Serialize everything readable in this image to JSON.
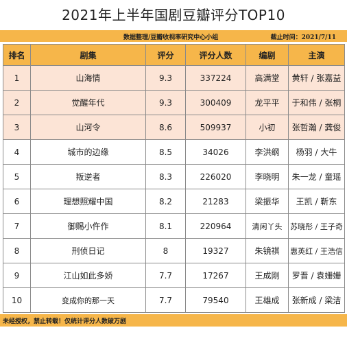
{
  "title": "2021年上半年国剧豆瓣评分TOP10",
  "source": "数据整理/豆瓣收视率研究中心小组",
  "cutoff": "截止时间：2021/7/11",
  "headers": {
    "rank": "排名",
    "drama": "剧集",
    "score": "评分",
    "raters": "评分人数",
    "writer": "编剧",
    "cast": "主演"
  },
  "rows": [
    {
      "rank": "1",
      "drama": "山海情",
      "score": "9.3",
      "raters": "337224",
      "writer": "高满堂",
      "cast": "黄轩 / 张嘉益"
    },
    {
      "rank": "2",
      "drama": "觉醒年代",
      "score": "9.3",
      "raters": "300409",
      "writer": "龙平平",
      "cast": "于和伟 / 张桐"
    },
    {
      "rank": "3",
      "drama": "山河令",
      "score": "8.6",
      "raters": "509937",
      "writer": "小初",
      "cast": "张哲瀚 / 龚俊"
    },
    {
      "rank": "4",
      "drama": "城市的边缘",
      "score": "8.5",
      "raters": "34026",
      "writer": "李洪纲",
      "cast": "杨羽 / 大牛"
    },
    {
      "rank": "5",
      "drama": "叛逆者",
      "score": "8.3",
      "raters": "226020",
      "writer": "李晓明",
      "cast": "朱一龙 / 童瑶"
    },
    {
      "rank": "6",
      "drama": "理想照耀中国",
      "score": "8.2",
      "raters": "21283",
      "writer": "梁振华",
      "cast": "王凯 / 靳东"
    },
    {
      "rank": "7",
      "drama": "御赐小仵作",
      "score": "8.1",
      "raters": "220964",
      "writer": "清闲丫头",
      "cast": "苏晓彤 / 王子奇"
    },
    {
      "rank": "8",
      "drama": "刑侦日记",
      "score": "8",
      "raters": "19327",
      "writer": "朱镜祺",
      "cast": "惠英红 / 王浩信"
    },
    {
      "rank": "9",
      "drama": "江山如此多娇",
      "score": "7.7",
      "raters": "17267",
      "writer": "王成刚",
      "cast": "罗晋 / 袁姗姗"
    },
    {
      "rank": "10",
      "drama": "变成你的那一天",
      "score": "7.7",
      "raters": "79540",
      "writer": "王雄成",
      "cast": "张新成 / 梁洁"
    }
  ],
  "footer": "未经授权，禁止转载！仅统计评分人数破万剧",
  "colors": {
    "header_bg": "#f6b64a",
    "top_row_bg": "#fce4d6",
    "border": "#8a8a8a"
  }
}
